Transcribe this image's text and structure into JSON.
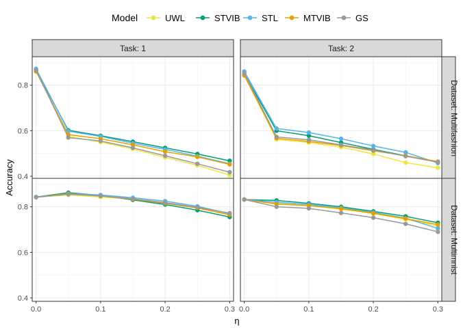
{
  "chart_data": {
    "type": "line",
    "xlabel": "η",
    "ylabel": "Accuracy",
    "legend": {
      "title": "Model",
      "placement": "top"
    },
    "x": [
      0.0,
      0.05,
      0.1,
      0.15,
      0.2,
      0.25,
      0.3
    ],
    "x_ticks": [
      "0.0",
      "0.1",
      "0.2",
      "0.3"
    ],
    "y_ticks": [
      "0.4",
      "0.6",
      "0.8"
    ],
    "ylim": [
      0.385,
      0.925
    ],
    "xlim": [
      -0.006,
      0.306
    ],
    "grid": true,
    "colors": {
      "UWL": "#F0E442",
      "STVIB": "#009E73",
      "STL": "#56B4E9",
      "MTVIB": "#E69F00",
      "GS": "#999999"
    },
    "series_order": [
      "UWL",
      "STVIB",
      "STL",
      "MTVIB",
      "GS"
    ],
    "panels": [
      {
        "row": 0,
        "col": 0,
        "task_label": "Task: 1",
        "dataset_label": "Dataset: Multifashion",
        "series": [
          {
            "name": "UWL",
            "values": [
              0.862,
              0.575,
              0.55,
              0.52,
              0.483,
              0.448,
              0.405
            ]
          },
          {
            "name": "STVIB",
            "values": [
              0.865,
              0.602,
              0.578,
              0.552,
              0.525,
              0.498,
              0.468
            ]
          },
          {
            "name": "STL",
            "values": [
              0.872,
              0.598,
              0.575,
              0.545,
              0.518,
              0.488,
              0.455
            ]
          },
          {
            "name": "MTVIB",
            "values": [
              0.86,
              0.583,
              0.565,
              0.538,
              0.508,
              0.485,
              0.452
            ]
          },
          {
            "name": "GS",
            "values": [
              0.866,
              0.57,
              0.555,
              0.525,
              0.49,
              0.455,
              0.418
            ]
          }
        ]
      },
      {
        "row": 0,
        "col": 1,
        "task_label": "Task: 2",
        "dataset_label": "Dataset: Multifashion",
        "series": [
          {
            "name": "UWL",
            "values": [
              0.845,
              0.562,
              0.548,
              0.528,
              0.498,
              0.46,
              0.437
            ]
          },
          {
            "name": "STVIB",
            "values": [
              0.85,
              0.6,
              0.578,
              0.548,
              0.518,
              0.49,
              0.463
            ]
          },
          {
            "name": "STL",
            "values": [
              0.86,
              0.61,
              0.592,
              0.565,
              0.533,
              0.505,
              0.458
            ]
          },
          {
            "name": "MTVIB",
            "values": [
              0.843,
              0.567,
              0.553,
              0.535,
              0.512,
              0.49,
              0.465
            ]
          },
          {
            "name": "GS",
            "values": [
              0.852,
              0.573,
              0.56,
              0.538,
              0.515,
              0.488,
              0.462
            ]
          }
        ]
      },
      {
        "row": 1,
        "col": 0,
        "task_label": "Task: 1",
        "dataset_label": "Dataset: Multimnist",
        "series": [
          {
            "name": "UWL",
            "values": [
              0.842,
              0.852,
              0.843,
              0.835,
              0.818,
              0.795,
              0.765
            ]
          },
          {
            "name": "STVIB",
            "values": [
              0.843,
              0.862,
              0.85,
              0.83,
              0.81,
              0.785,
              0.755
            ]
          },
          {
            "name": "STL",
            "values": [
              0.842,
              0.858,
              0.852,
              0.84,
              0.825,
              0.802,
              0.77
            ]
          },
          {
            "name": "MTVIB",
            "values": [
              0.842,
              0.857,
              0.847,
              0.833,
              0.815,
              0.795,
              0.765
            ]
          },
          {
            "name": "GS",
            "values": [
              0.842,
              0.855,
              0.848,
              0.835,
              0.818,
              0.798,
              0.772
            ]
          }
        ]
      },
      {
        "row": 1,
        "col": 1,
        "task_label": "Task: 2",
        "dataset_label": "Dataset: Multimnist",
        "series": [
          {
            "name": "UWL",
            "values": [
              0.832,
              0.815,
              0.805,
              0.79,
              0.77,
              0.745,
              0.715
            ]
          },
          {
            "name": "STVIB",
            "values": [
              0.832,
              0.828,
              0.815,
              0.8,
              0.78,
              0.758,
              0.73
            ]
          },
          {
            "name": "STL",
            "values": [
              0.832,
              0.82,
              0.81,
              0.795,
              0.775,
              0.75,
              0.705
            ]
          },
          {
            "name": "MTVIB",
            "values": [
              0.832,
              0.812,
              0.805,
              0.792,
              0.772,
              0.748,
              0.722
            ]
          },
          {
            "name": "GS",
            "values": [
              0.832,
              0.8,
              0.793,
              0.773,
              0.752,
              0.725,
              0.69
            ]
          }
        ]
      }
    ]
  }
}
